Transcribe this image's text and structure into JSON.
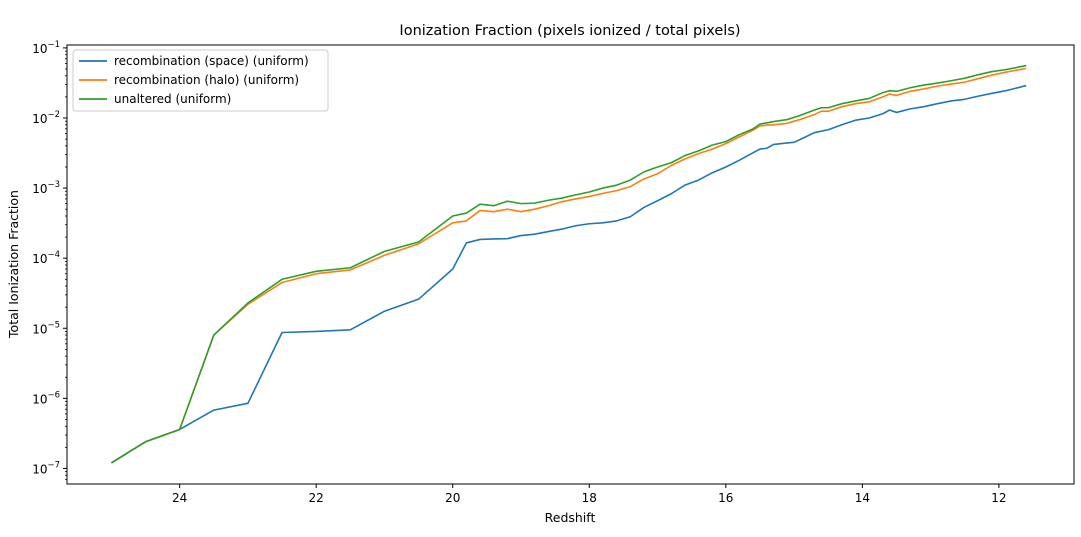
{
  "chart_data": {
    "type": "line",
    "title": "Ionization Fraction (pixels ionized / total pixels)",
    "xlabel": "Redshift",
    "ylabel": "Total Ionization Fraction",
    "xlim": [
      25.65,
      10.9
    ],
    "x_inverted": true,
    "ylim": [
      6e-08,
      0.11
    ],
    "yscale": "log",
    "grid": false,
    "legend_position": "top-left",
    "x_ticks": [
      24,
      22,
      20,
      18,
      16,
      14,
      12
    ],
    "x_tick_labels": [
      "24",
      "22",
      "20",
      "18",
      "16",
      "14",
      "12"
    ],
    "y_ticks": [
      1e-07,
      1e-06,
      1e-05,
      0.0001,
      0.001,
      0.01,
      0.1
    ],
    "y_tick_labels": [
      {
        "base": "10",
        "exp": "−7"
      },
      {
        "base": "10",
        "exp": "−6"
      },
      {
        "base": "10",
        "exp": "−5"
      },
      {
        "base": "10",
        "exp": "−4"
      },
      {
        "base": "10",
        "exp": "−3"
      },
      {
        "base": "10",
        "exp": "−2"
      },
      {
        "base": "10",
        "exp": "−1"
      }
    ],
    "series": [
      {
        "name": "recombination (space) (uniform)",
        "color": "#1f77b4",
        "points": [
          [
            25.0,
            1.2e-07
          ],
          [
            24.5,
            2.4e-07
          ],
          [
            24.0,
            3.6e-07
          ],
          [
            23.5,
            6.8e-07
          ],
          [
            23.0,
            8.5e-07
          ],
          [
            22.5,
            8.7e-06
          ],
          [
            22.0,
            9e-06
          ],
          [
            21.5,
            9.5e-06
          ],
          [
            21.0,
            1.75e-05
          ],
          [
            20.5,
            2.6e-05
          ],
          [
            20.0,
            7e-05
          ],
          [
            19.8,
            0.000165
          ],
          [
            19.6,
            0.000185
          ],
          [
            19.4,
            0.000188
          ],
          [
            19.2,
            0.00019
          ],
          [
            19.0,
            0.00021
          ],
          [
            18.8,
            0.00022
          ],
          [
            18.6,
            0.00024
          ],
          [
            18.4,
            0.00026
          ],
          [
            18.2,
            0.00029
          ],
          [
            18.0,
            0.00031
          ],
          [
            17.8,
            0.00032
          ],
          [
            17.6,
            0.00034
          ],
          [
            17.4,
            0.00039
          ],
          [
            17.2,
            0.00053
          ],
          [
            17.0,
            0.00066
          ],
          [
            16.8,
            0.00083
          ],
          [
            16.6,
            0.0011
          ],
          [
            16.4,
            0.0013
          ],
          [
            16.2,
            0.00165
          ],
          [
            16.0,
            0.002
          ],
          [
            15.8,
            0.0025
          ],
          [
            15.6,
            0.0032
          ],
          [
            15.5,
            0.0036
          ],
          [
            15.4,
            0.0037
          ],
          [
            15.3,
            0.0042
          ],
          [
            15.1,
            0.0044
          ],
          [
            15.0,
            0.0045
          ],
          [
            14.9,
            0.005
          ],
          [
            14.7,
            0.0062
          ],
          [
            14.5,
            0.0068
          ],
          [
            14.3,
            0.008
          ],
          [
            14.1,
            0.0093
          ],
          [
            13.9,
            0.01
          ],
          [
            13.7,
            0.0115
          ],
          [
            13.6,
            0.013
          ],
          [
            13.5,
            0.012
          ],
          [
            13.3,
            0.0135
          ],
          [
            13.1,
            0.0145
          ],
          [
            12.9,
            0.016
          ],
          [
            12.7,
            0.0175
          ],
          [
            12.5,
            0.0185
          ],
          [
            12.3,
            0.0205
          ],
          [
            12.1,
            0.0225
          ],
          [
            11.9,
            0.0245
          ],
          [
            11.6,
            0.029
          ]
        ]
      },
      {
        "name": "recombination (halo) (uniform)",
        "color": "#ff7f0e",
        "points": [
          [
            25.0,
            1.2e-07
          ],
          [
            24.5,
            2.4e-07
          ],
          [
            24.0,
            3.6e-07
          ],
          [
            23.5,
            8e-06
          ],
          [
            23.0,
            2.2e-05
          ],
          [
            22.5,
            4.5e-05
          ],
          [
            22.0,
            6e-05
          ],
          [
            21.5,
            6.8e-05
          ],
          [
            21.0,
            0.00011
          ],
          [
            20.5,
            0.00016
          ],
          [
            20.0,
            0.00032
          ],
          [
            19.8,
            0.00034
          ],
          [
            19.6,
            0.00048
          ],
          [
            19.4,
            0.00046
          ],
          [
            19.2,
            0.0005
          ],
          [
            19.0,
            0.00046
          ],
          [
            18.8,
            0.0005
          ],
          [
            18.6,
            0.00056
          ],
          [
            18.4,
            0.00064
          ],
          [
            18.2,
            0.0007
          ],
          [
            18.0,
            0.00076
          ],
          [
            17.8,
            0.00084
          ],
          [
            17.6,
            0.00092
          ],
          [
            17.4,
            0.00105
          ],
          [
            17.2,
            0.00135
          ],
          [
            17.0,
            0.0016
          ],
          [
            16.8,
            0.0021
          ],
          [
            16.6,
            0.0026
          ],
          [
            16.4,
            0.0031
          ],
          [
            16.2,
            0.0036
          ],
          [
            16.0,
            0.0043
          ],
          [
            15.8,
            0.0054
          ],
          [
            15.6,
            0.0067
          ],
          [
            15.5,
            0.0077
          ],
          [
            15.4,
            0.0079
          ],
          [
            15.3,
            0.008
          ],
          [
            15.1,
            0.0084
          ],
          [
            15.0,
            0.009
          ],
          [
            14.9,
            0.0096
          ],
          [
            14.7,
            0.0112
          ],
          [
            14.6,
            0.0125
          ],
          [
            14.5,
            0.0125
          ],
          [
            14.3,
            0.0145
          ],
          [
            14.1,
            0.016
          ],
          [
            13.9,
            0.017
          ],
          [
            13.7,
            0.02
          ],
          [
            13.6,
            0.022
          ],
          [
            13.5,
            0.021
          ],
          [
            13.3,
            0.024
          ],
          [
            13.1,
            0.026
          ],
          [
            12.9,
            0.0285
          ],
          [
            12.7,
            0.0305
          ],
          [
            12.5,
            0.0325
          ],
          [
            12.3,
            0.0365
          ],
          [
            12.1,
            0.041
          ],
          [
            11.9,
            0.045
          ],
          [
            11.6,
            0.051
          ]
        ]
      },
      {
        "name": "unaltered (uniform)",
        "color": "#2ca02c",
        "points": [
          [
            25.0,
            1.2e-07
          ],
          [
            24.5,
            2.4e-07
          ],
          [
            24.0,
            3.6e-07
          ],
          [
            23.5,
            8e-06
          ],
          [
            23.0,
            2.3e-05
          ],
          [
            22.5,
            5e-05
          ],
          [
            22.0,
            6.5e-05
          ],
          [
            21.5,
            7.3e-05
          ],
          [
            21.0,
            0.000125
          ],
          [
            20.5,
            0.00017
          ],
          [
            20.0,
            0.0004
          ],
          [
            19.8,
            0.00044
          ],
          [
            19.6,
            0.00059
          ],
          [
            19.4,
            0.00056
          ],
          [
            19.2,
            0.00065
          ],
          [
            19.0,
            0.0006
          ],
          [
            18.8,
            0.00061
          ],
          [
            18.6,
            0.00067
          ],
          [
            18.4,
            0.00072
          ],
          [
            18.2,
            0.0008
          ],
          [
            18.0,
            0.00088
          ],
          [
            17.8,
            0.001
          ],
          [
            17.6,
            0.0011
          ],
          [
            17.4,
            0.0013
          ],
          [
            17.2,
            0.0017
          ],
          [
            17.0,
            0.002
          ],
          [
            16.8,
            0.0023
          ],
          [
            16.6,
            0.0029
          ],
          [
            16.4,
            0.0034
          ],
          [
            16.2,
            0.0041
          ],
          [
            16.0,
            0.0046
          ],
          [
            15.8,
            0.0058
          ],
          [
            15.6,
            0.007
          ],
          [
            15.5,
            0.0082
          ],
          [
            15.4,
            0.0085
          ],
          [
            15.3,
            0.0089
          ],
          [
            15.1,
            0.0095
          ],
          [
            15.0,
            0.0102
          ],
          [
            14.9,
            0.011
          ],
          [
            14.7,
            0.013
          ],
          [
            14.6,
            0.014
          ],
          [
            14.5,
            0.014
          ],
          [
            14.3,
            0.016
          ],
          [
            14.1,
            0.0175
          ],
          [
            13.9,
            0.019
          ],
          [
            13.7,
            0.023
          ],
          [
            13.6,
            0.0245
          ],
          [
            13.5,
            0.024
          ],
          [
            13.3,
            0.027
          ],
          [
            13.1,
            0.0295
          ],
          [
            12.9,
            0.0315
          ],
          [
            12.7,
            0.034
          ],
          [
            12.5,
            0.037
          ],
          [
            12.3,
            0.0415
          ],
          [
            12.1,
            0.046
          ],
          [
            11.9,
            0.049
          ],
          [
            11.6,
            0.056
          ]
        ]
      }
    ]
  }
}
